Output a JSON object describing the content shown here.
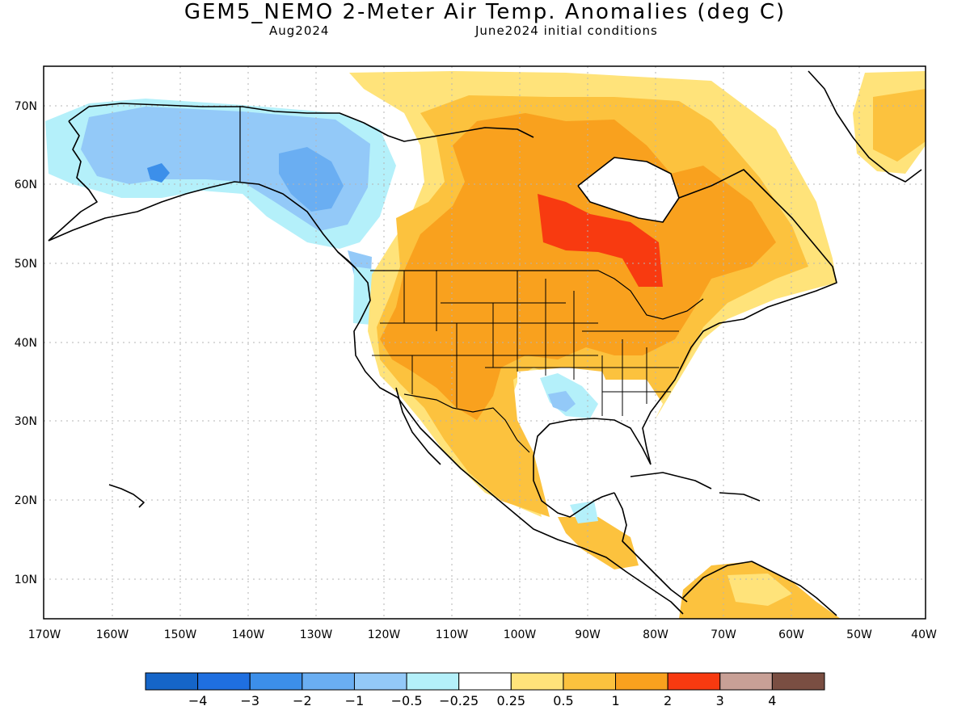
{
  "title": "GEM5_NEMO 2-Meter Air Temp. Anomalies (deg C)",
  "valid_month": "Aug2024",
  "initial_conditions": "June2024 initial conditions",
  "lat_labels": [
    "70N",
    "60N",
    "50N",
    "40N",
    "30N",
    "20N",
    "10N"
  ],
  "lon_labels": [
    "170W",
    "160W",
    "150W",
    "140W",
    "130W",
    "120W",
    "110W",
    "100W",
    "90W",
    "80W",
    "70W",
    "60W",
    "50W",
    "40W"
  ],
  "colorbar": {
    "colors": [
      "#1565c8",
      "#1f6fe0",
      "#3c8fea",
      "#6aaef2",
      "#93c9f8",
      "#b4f0fa",
      "#ffffff",
      "#ffe37a",
      "#fcc23e",
      "#f9a11e",
      "#f83a10",
      "#c8a096",
      "#7a4e42"
    ],
    "labels": [
      "-4",
      "-3",
      "-2",
      "-1",
      "-0.5",
      "-0.25",
      "0.25",
      "0.5",
      "1",
      "2",
      "3",
      "4"
    ]
  },
  "colors": {
    "land_outline": "#000000",
    "grid": "#b4b4b4"
  }
}
